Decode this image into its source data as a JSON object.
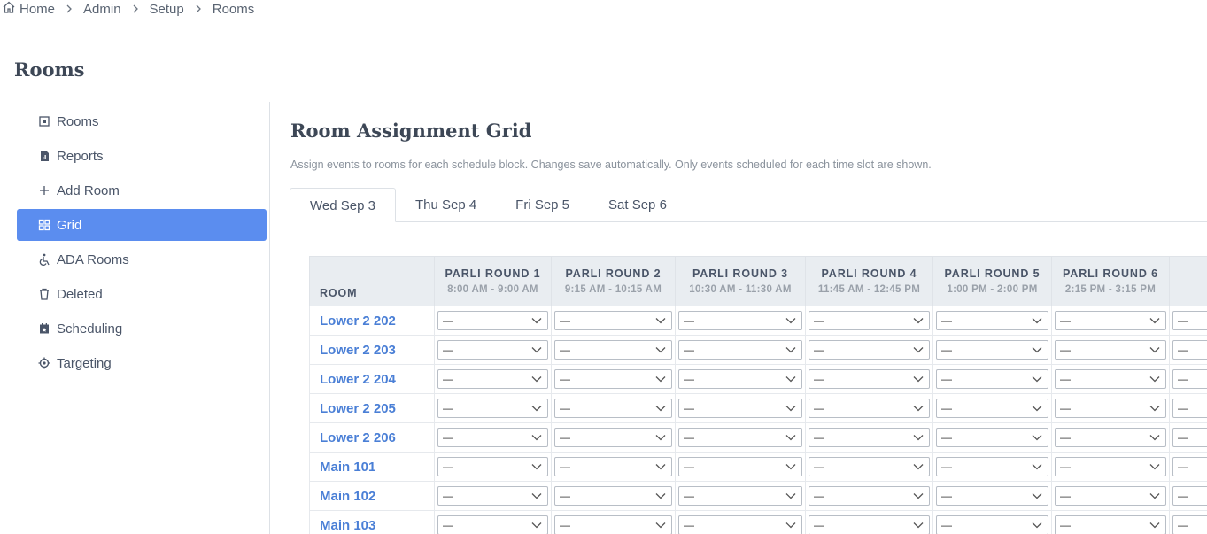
{
  "breadcrumb": [
    "Home",
    "Admin",
    "Setup",
    "Rooms"
  ],
  "page_title": "Rooms",
  "sidebar": {
    "items": [
      "Rooms",
      "Reports",
      "Add Room",
      "Grid",
      "ADA Rooms",
      "Deleted",
      "Scheduling",
      "Targeting"
    ],
    "active": 3
  },
  "main": {
    "title": "Room Assignment Grid",
    "description": "Assign events to rooms for each schedule block. Changes save automatically. Only events scheduled for each time slot are shown.",
    "tabs": [
      "Wed Sep 3",
      "Thu Sep 4",
      "Fri Sep 5",
      "Sat Sep 6"
    ],
    "active_tab": 0
  },
  "table": {
    "room_header": "ROOM",
    "columns": [
      {
        "name": "PARLI ROUND 1",
        "time": "8:00 AM - 9:00 AM"
      },
      {
        "name": "PARLI ROUND 2",
        "time": "9:15 AM - 10:15 AM"
      },
      {
        "name": "PARLI ROUND 3",
        "time": "10:30 AM - 11:30 AM"
      },
      {
        "name": "PARLI ROUND 4",
        "time": "11:45 AM - 12:45 PM"
      },
      {
        "name": "PARLI ROUND 5",
        "time": "1:00 PM - 2:00 PM"
      },
      {
        "name": "PARLI ROUND 6",
        "time": "2:15 PM - 3:15 PM"
      }
    ],
    "rooms": [
      "Lower 2 202",
      "Lower 2 203",
      "Lower 2 204",
      "Lower 2 205",
      "Lower 2 206",
      "Main 101",
      "Main 102",
      "Main 103"
    ],
    "select_placeholder": "—"
  }
}
